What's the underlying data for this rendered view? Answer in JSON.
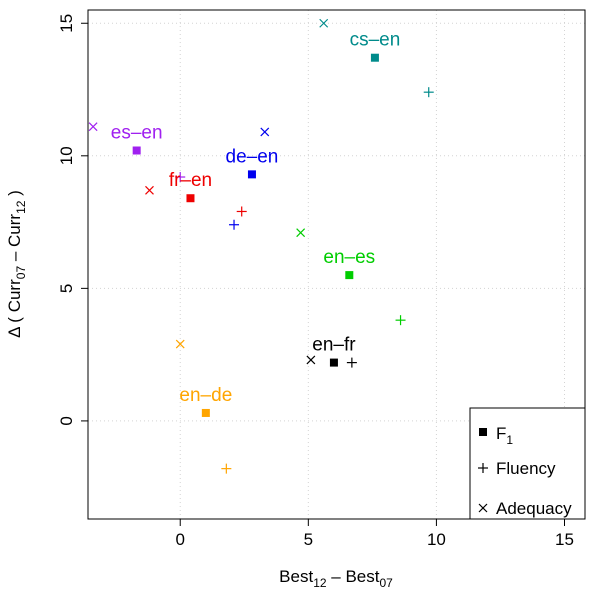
{
  "chart_data": {
    "type": "scatter",
    "title": "",
    "xlabel": {
      "base": "Best",
      "sub1": "12",
      "mid": " – Best",
      "sub2": "07"
    },
    "ylabel": {
      "pre": "Δ ( Curr",
      "sub1": "07",
      "mid": " – Curr",
      "sub2": "12",
      "post": " )"
    },
    "xlim": [
      -3.6,
      15.8
    ],
    "ylim": [
      -3.7,
      15.5
    ],
    "xticks": [
      0,
      5,
      10,
      15
    ],
    "yticks": [
      0,
      5,
      10,
      15
    ],
    "grid": true,
    "legend": {
      "position": "bottom-right",
      "entries": [
        {
          "marker": "square",
          "label": "F",
          "sub": "1"
        },
        {
          "marker": "plus",
          "label": "Fluency",
          "sub": ""
        },
        {
          "marker": "cross",
          "label": "Adequacy",
          "sub": ""
        }
      ]
    },
    "series": [
      {
        "name": "cs–en",
        "color": "#008b8b",
        "f1": [
          7.6,
          13.7
        ],
        "fluency": [
          9.7,
          12.4
        ],
        "adequacy": [
          5.6,
          15.0
        ]
      },
      {
        "name": "es–en",
        "color": "#a020f0",
        "f1": [
          -1.7,
          10.2
        ],
        "fluency": [
          0.0,
          9.2
        ],
        "adequacy": [
          -3.4,
          11.1
        ]
      },
      {
        "name": "de–en",
        "color": "#0000ee",
        "f1": [
          2.8,
          9.3
        ],
        "fluency": [
          2.1,
          7.4
        ],
        "adequacy": [
          3.3,
          10.9
        ]
      },
      {
        "name": "fr–en",
        "color": "#ee0000",
        "f1": [
          0.4,
          8.4
        ],
        "fluency": [
          2.4,
          7.9
        ],
        "adequacy": [
          -1.2,
          8.7
        ]
      },
      {
        "name": "en–es",
        "color": "#00cd00",
        "f1": [
          6.6,
          5.5
        ],
        "fluency": [
          8.6,
          3.8
        ],
        "adequacy": [
          4.7,
          7.1
        ]
      },
      {
        "name": "en–fr",
        "color": "#000000",
        "f1": [
          6.0,
          2.2
        ],
        "fluency": [
          6.7,
          2.2
        ],
        "adequacy": [
          5.1,
          2.3
        ]
      },
      {
        "name": "en–de",
        "color": "#ffa500",
        "f1": [
          1.0,
          0.3
        ],
        "fluency": [
          1.8,
          -1.8
        ],
        "adequacy": [
          0.0,
          2.9
        ]
      }
    ]
  }
}
